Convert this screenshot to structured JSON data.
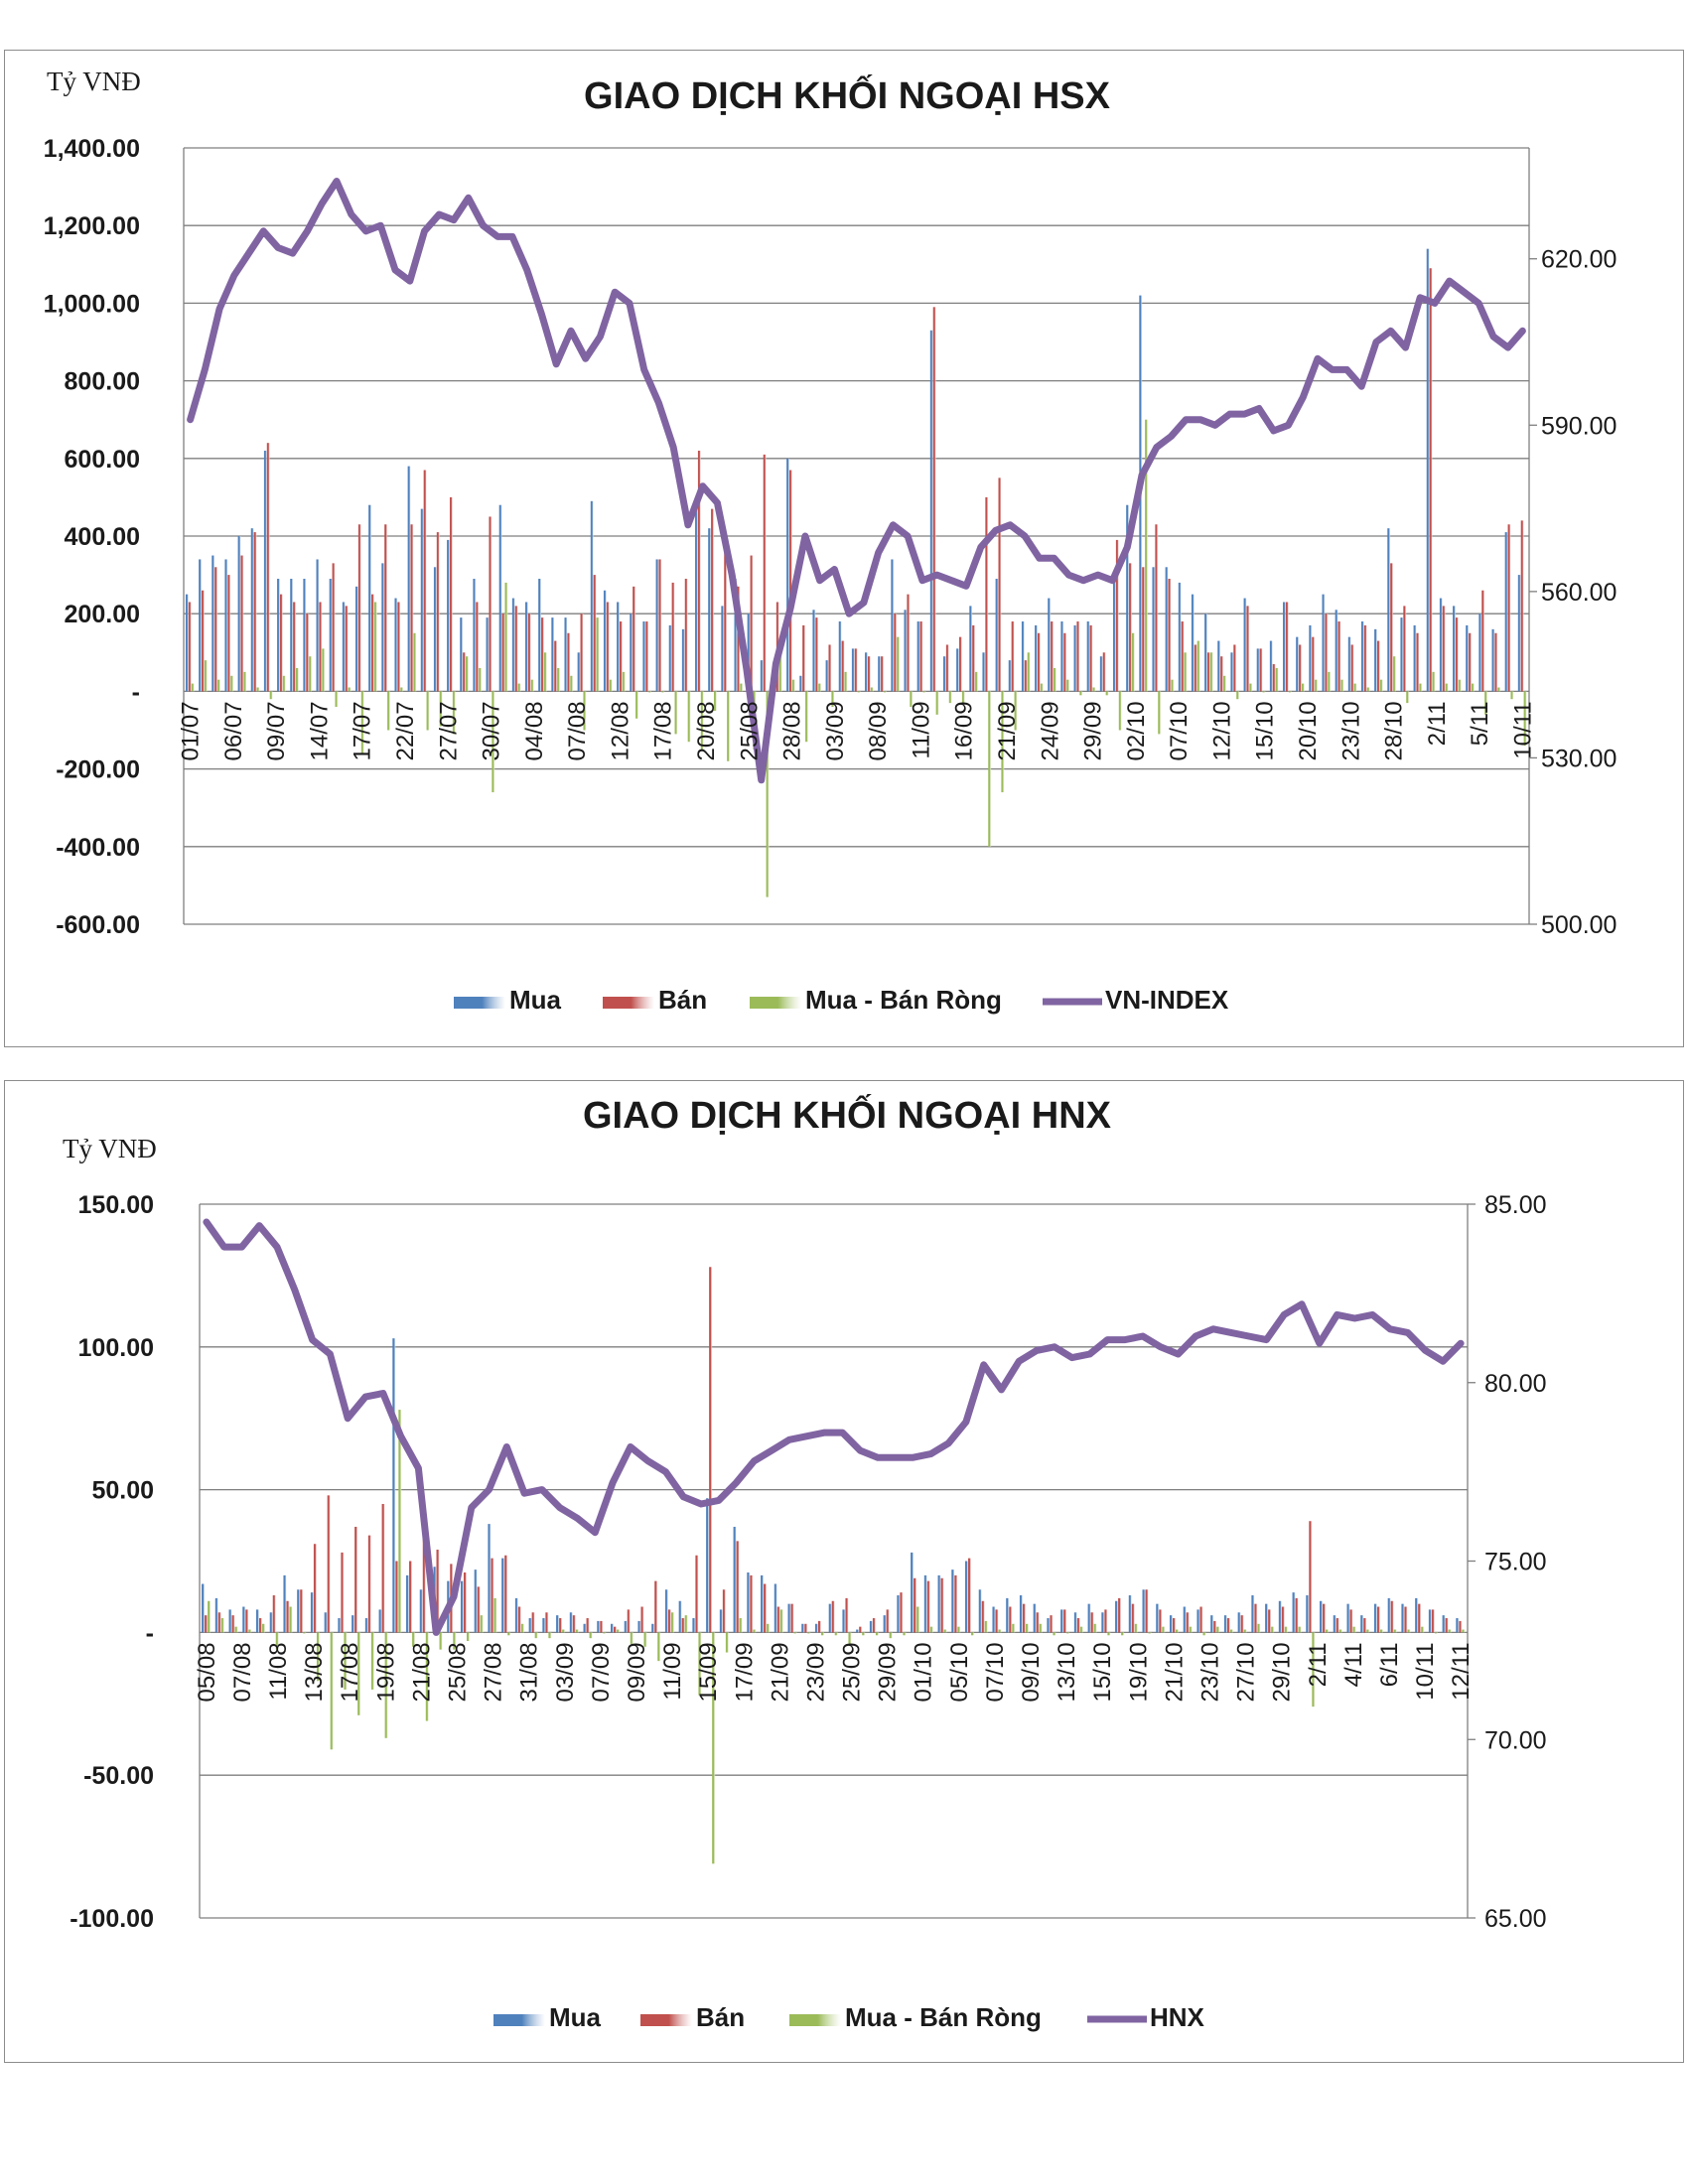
{
  "colors": {
    "mua": "#4f81bd",
    "ban": "#c0504d",
    "rong": "#9bbb59",
    "index": "#8064a2",
    "grid": "#7f7f7f"
  },
  "chart_data": [
    {
      "type": "bar",
      "title": "GIAO DỊCH KHỐI NGOẠI HSX",
      "unit_label": "Tỷ VNĐ",
      "ylim": [
        -600,
        1400
      ],
      "y_ticks": [
        "1,400.00",
        "1,200.00",
        "1,000.00",
        "800.00",
        "600.00",
        "400.00",
        "200.00",
        "-",
        "-200.00",
        "-400.00",
        "-600.00"
      ],
      "y2lim": [
        500,
        640
      ],
      "y2_ticks": [
        "620.00",
        "590.00",
        "560.00",
        "530.00",
        "500.00"
      ],
      "x_tick_labels": [
        "01/07",
        "06/07",
        "09/07",
        "14/07",
        "17/07",
        "22/07",
        "27/07",
        "30/07",
        "04/08",
        "07/08",
        "12/08",
        "17/08",
        "20/08",
        "25/08",
        "28/08",
        "03/09",
        "08/09",
        "11/09",
        "16/09",
        "21/09",
        "24/09",
        "29/09",
        "02/10",
        "07/10",
        "12/10",
        "15/10",
        "20/10",
        "23/10",
        "28/10",
        "2/11",
        "5/11",
        "10/11"
      ],
      "grid": true,
      "legend_position": "bottom",
      "legend": [
        "Mua",
        "Bán",
        "Mua - Bán Ròng",
        "VN-INDEX"
      ],
      "series": [
        {
          "name": "Mua",
          "values": [
            250,
            340,
            350,
            340,
            400,
            420,
            620,
            290,
            290,
            290,
            340,
            290,
            230,
            270,
            480,
            330,
            240,
            580,
            470,
            320,
            390,
            190,
            290,
            190,
            480,
            240,
            230,
            290,
            190,
            190,
            100,
            490,
            260,
            230,
            200,
            180,
            340,
            170,
            160,
            470,
            420,
            220,
            290,
            200,
            80,
            80,
            600,
            40,
            210,
            80,
            180,
            110,
            100,
            90,
            340,
            210,
            180,
            930,
            90,
            110,
            220,
            100,
            290,
            80,
            180,
            170,
            240,
            180,
            170,
            180,
            90,
            290,
            480,
            1020,
            320,
            320,
            280,
            250,
            200,
            130,
            100,
            240,
            110,
            130,
            230,
            140,
            170,
            250,
            210,
            140,
            180,
            160,
            420,
            190,
            170,
            1140,
            240,
            220,
            170,
            200,
            160,
            410,
            300
          ],
          "estimated": true
        },
        {
          "name": "Bán",
          "values": [
            230,
            260,
            320,
            300,
            350,
            410,
            640,
            250,
            230,
            200,
            230,
            330,
            220,
            430,
            250,
            430,
            230,
            430,
            570,
            410,
            500,
            100,
            230,
            450,
            200,
            220,
            200,
            190,
            130,
            150,
            200,
            300,
            230,
            180,
            270,
            180,
            340,
            280,
            290,
            620,
            470,
            400,
            270,
            350,
            610,
            230,
            570,
            170,
            190,
            120,
            130,
            110,
            90,
            90,
            200,
            250,
            180,
            990,
            120,
            140,
            170,
            500,
            550,
            180,
            80,
            150,
            180,
            150,
            180,
            170,
            100,
            390,
            330,
            320,
            430,
            290,
            180,
            120,
            100,
            90,
            120,
            220,
            110,
            70,
            230,
            120,
            140,
            200,
            180,
            120,
            170,
            130,
            330,
            220,
            150,
            1090,
            220,
            190,
            150,
            260,
            150,
            430,
            440
          ],
          "estimated": true
        },
        {
          "name": "Mua - Bán Ròng",
          "values": [
            20,
            80,
            30,
            40,
            50,
            10,
            -20,
            40,
            60,
            90,
            110,
            -40,
            10,
            -160,
            230,
            -100,
            10,
            150,
            -100,
            -90,
            -110,
            90,
            60,
            -260,
            280,
            20,
            30,
            100,
            60,
            40,
            -100,
            190,
            30,
            50,
            -70,
            0,
            0,
            -110,
            -130,
            -150,
            -50,
            -180,
            20,
            -150,
            -530,
            100,
            30,
            -130,
            20,
            -40,
            50,
            0,
            10,
            0,
            140,
            -40,
            0,
            -60,
            -30,
            -30,
            50,
            -400,
            -260,
            -100,
            100,
            20,
            60,
            30,
            -10,
            10,
            -10,
            -100,
            150,
            700,
            -110,
            30,
            100,
            130,
            100,
            40,
            -20,
            20,
            0,
            60,
            0,
            20,
            30,
            50,
            30,
            20,
            10,
            30,
            90,
            -30,
            20,
            50,
            20,
            30,
            20,
            -60,
            10,
            -20,
            -140
          ],
          "estimated": true
        },
        {
          "name": "VN-INDEX",
          "axis": "secondary",
          "values": [
            591,
            600,
            611,
            617,
            621,
            625,
            622,
            621,
            625,
            630,
            634,
            628,
            625,
            626,
            618,
            616,
            625,
            628,
            627,
            631,
            626,
            624,
            624,
            618,
            610,
            601,
            607,
            602,
            606,
            614,
            612,
            600,
            594,
            586,
            572,
            579,
            576,
            563,
            546,
            526,
            547,
            557,
            570,
            562,
            564,
            556,
            558,
            567,
            572,
            570,
            562,
            563,
            562,
            561,
            568,
            571,
            572,
            570,
            566,
            566,
            563,
            562,
            563,
            562,
            568,
            581,
            586,
            588,
            591,
            591,
            590,
            592,
            592,
            593,
            589,
            590,
            595,
            602,
            600,
            600,
            597,
            605,
            607,
            604,
            613,
            612,
            616,
            614,
            612,
            606,
            604,
            607
          ],
          "estimated": true
        }
      ]
    },
    {
      "type": "bar",
      "title": "GIAO DỊCH KHỐI NGOẠI HNX",
      "unit_label": "Tỷ VNĐ",
      "ylim": [
        -100,
        150
      ],
      "y_ticks": [
        "150.00",
        "100.00",
        "50.00",
        "-",
        "-50.00",
        "-100.00"
      ],
      "y2lim": [
        65,
        85
      ],
      "y2_ticks": [
        "85.00",
        "80.00",
        "75.00",
        "70.00",
        "65.00"
      ],
      "x_tick_labels": [
        "05/08",
        "07/08",
        "11/08",
        "13/08",
        "17/08",
        "19/08",
        "21/08",
        "25/08",
        "27/08",
        "31/08",
        "03/09",
        "07/09",
        "09/09",
        "11/09",
        "15/09",
        "17/09",
        "21/09",
        "23/09",
        "25/09",
        "29/09",
        "01/10",
        "05/10",
        "07/10",
        "09/10",
        "13/10",
        "15/10",
        "19/10",
        "21/10",
        "23/10",
        "27/10",
        "29/10",
        "2/11",
        "4/11",
        "6/11",
        "10/11",
        "12/11"
      ],
      "grid": true,
      "legend_position": "bottom",
      "legend": [
        "Mua",
        "Bán",
        "Mua - Bán Ròng",
        "HNX"
      ],
      "series": [
        {
          "name": "Mua",
          "values": [
            17,
            12,
            8,
            9,
            8,
            7,
            20,
            15,
            14,
            7,
            5,
            6,
            5,
            8,
            103,
            20,
            15,
            23,
            18,
            18,
            22,
            38,
            26,
            12,
            5,
            5,
            6,
            7,
            3,
            4,
            3,
            4,
            4,
            3,
            15,
            11,
            5,
            47,
            8,
            37,
            21,
            20,
            17,
            10,
            3,
            3,
            10,
            8,
            1,
            4,
            6,
            13,
            28,
            20,
            20,
            22,
            25,
            15,
            9,
            12,
            13,
            10,
            5,
            8,
            7,
            10,
            7,
            11,
            13,
            15,
            10,
            6,
            9,
            8,
            6,
            6,
            7,
            13,
            10,
            11,
            14,
            13,
            11,
            6,
            10,
            6,
            10,
            12,
            10,
            12,
            8,
            6,
            5
          ],
          "estimated": true
        },
        {
          "name": "Bán",
          "values": [
            6,
            7,
            6,
            8,
            5,
            13,
            11,
            15,
            31,
            48,
            28,
            37,
            34,
            45,
            25,
            25,
            46,
            29,
            24,
            21,
            16,
            26,
            27,
            9,
            7,
            7,
            5,
            6,
            5,
            4,
            2,
            8,
            9,
            18,
            8,
            5,
            27,
            128,
            15,
            32,
            20,
            17,
            9,
            10,
            3,
            4,
            11,
            12,
            2,
            5,
            8,
            14,
            19,
            18,
            19,
            20,
            26,
            11,
            8,
            9,
            10,
            7,
            6,
            8,
            5,
            7,
            8,
            12,
            10,
            15,
            8,
            5,
            7,
            9,
            4,
            5,
            6,
            10,
            8,
            9,
            12,
            39,
            10,
            5,
            8,
            5,
            9,
            11,
            9,
            10,
            8,
            5,
            4
          ],
          "estimated": true
        },
        {
          "name": "Mua - Bán Ròng",
          "values": [
            11,
            5,
            2,
            1,
            3,
            -6,
            9,
            0,
            -17,
            -41,
            -20,
            -29,
            -20,
            -37,
            78,
            -5,
            -31,
            -6,
            -6,
            -3,
            6,
            12,
            -1,
            3,
            -2,
            -2,
            1,
            1,
            -2,
            0,
            1,
            -4,
            -5,
            -10,
            7,
            6,
            -22,
            -81,
            -7,
            5,
            1,
            3,
            8,
            0,
            0,
            -1,
            -1,
            -4,
            -1,
            -1,
            -2,
            -1,
            9,
            2,
            1,
            2,
            -1,
            4,
            1,
            3,
            3,
            3,
            -1,
            0,
            2,
            3,
            -1,
            -1,
            3,
            0,
            2,
            1,
            2,
            -1,
            2,
            1,
            1,
            3,
            2,
            2,
            2,
            -26,
            1,
            1,
            2,
            1,
            1,
            1,
            1,
            2,
            0,
            1,
            1
          ],
          "estimated": true
        },
        {
          "name": "HNX",
          "axis": "secondary",
          "values": [
            84.5,
            83.8,
            83.8,
            84.4,
            83.8,
            82.6,
            81.2,
            80.8,
            79.0,
            79.6,
            79.7,
            78.5,
            77.6,
            73.0,
            74.0,
            76.5,
            77.0,
            78.2,
            76.9,
            77.0,
            76.5,
            76.2,
            75.8,
            77.2,
            78.2,
            77.8,
            77.5,
            76.8,
            76.6,
            76.7,
            77.2,
            77.8,
            78.1,
            78.4,
            78.5,
            78.6,
            78.6,
            78.1,
            77.9,
            77.9,
            77.9,
            78.0,
            78.3,
            78.9,
            80.5,
            79.8,
            80.6,
            80.9,
            81.0,
            80.7,
            80.8,
            81.2,
            81.2,
            81.3,
            81.0,
            80.8,
            81.3,
            81.5,
            81.4,
            81.3,
            81.2,
            81.9,
            82.2,
            81.1,
            81.9,
            81.8,
            81.9,
            81.5,
            81.4,
            80.9,
            80.6,
            81.1
          ],
          "estimated": true
        }
      ]
    }
  ]
}
